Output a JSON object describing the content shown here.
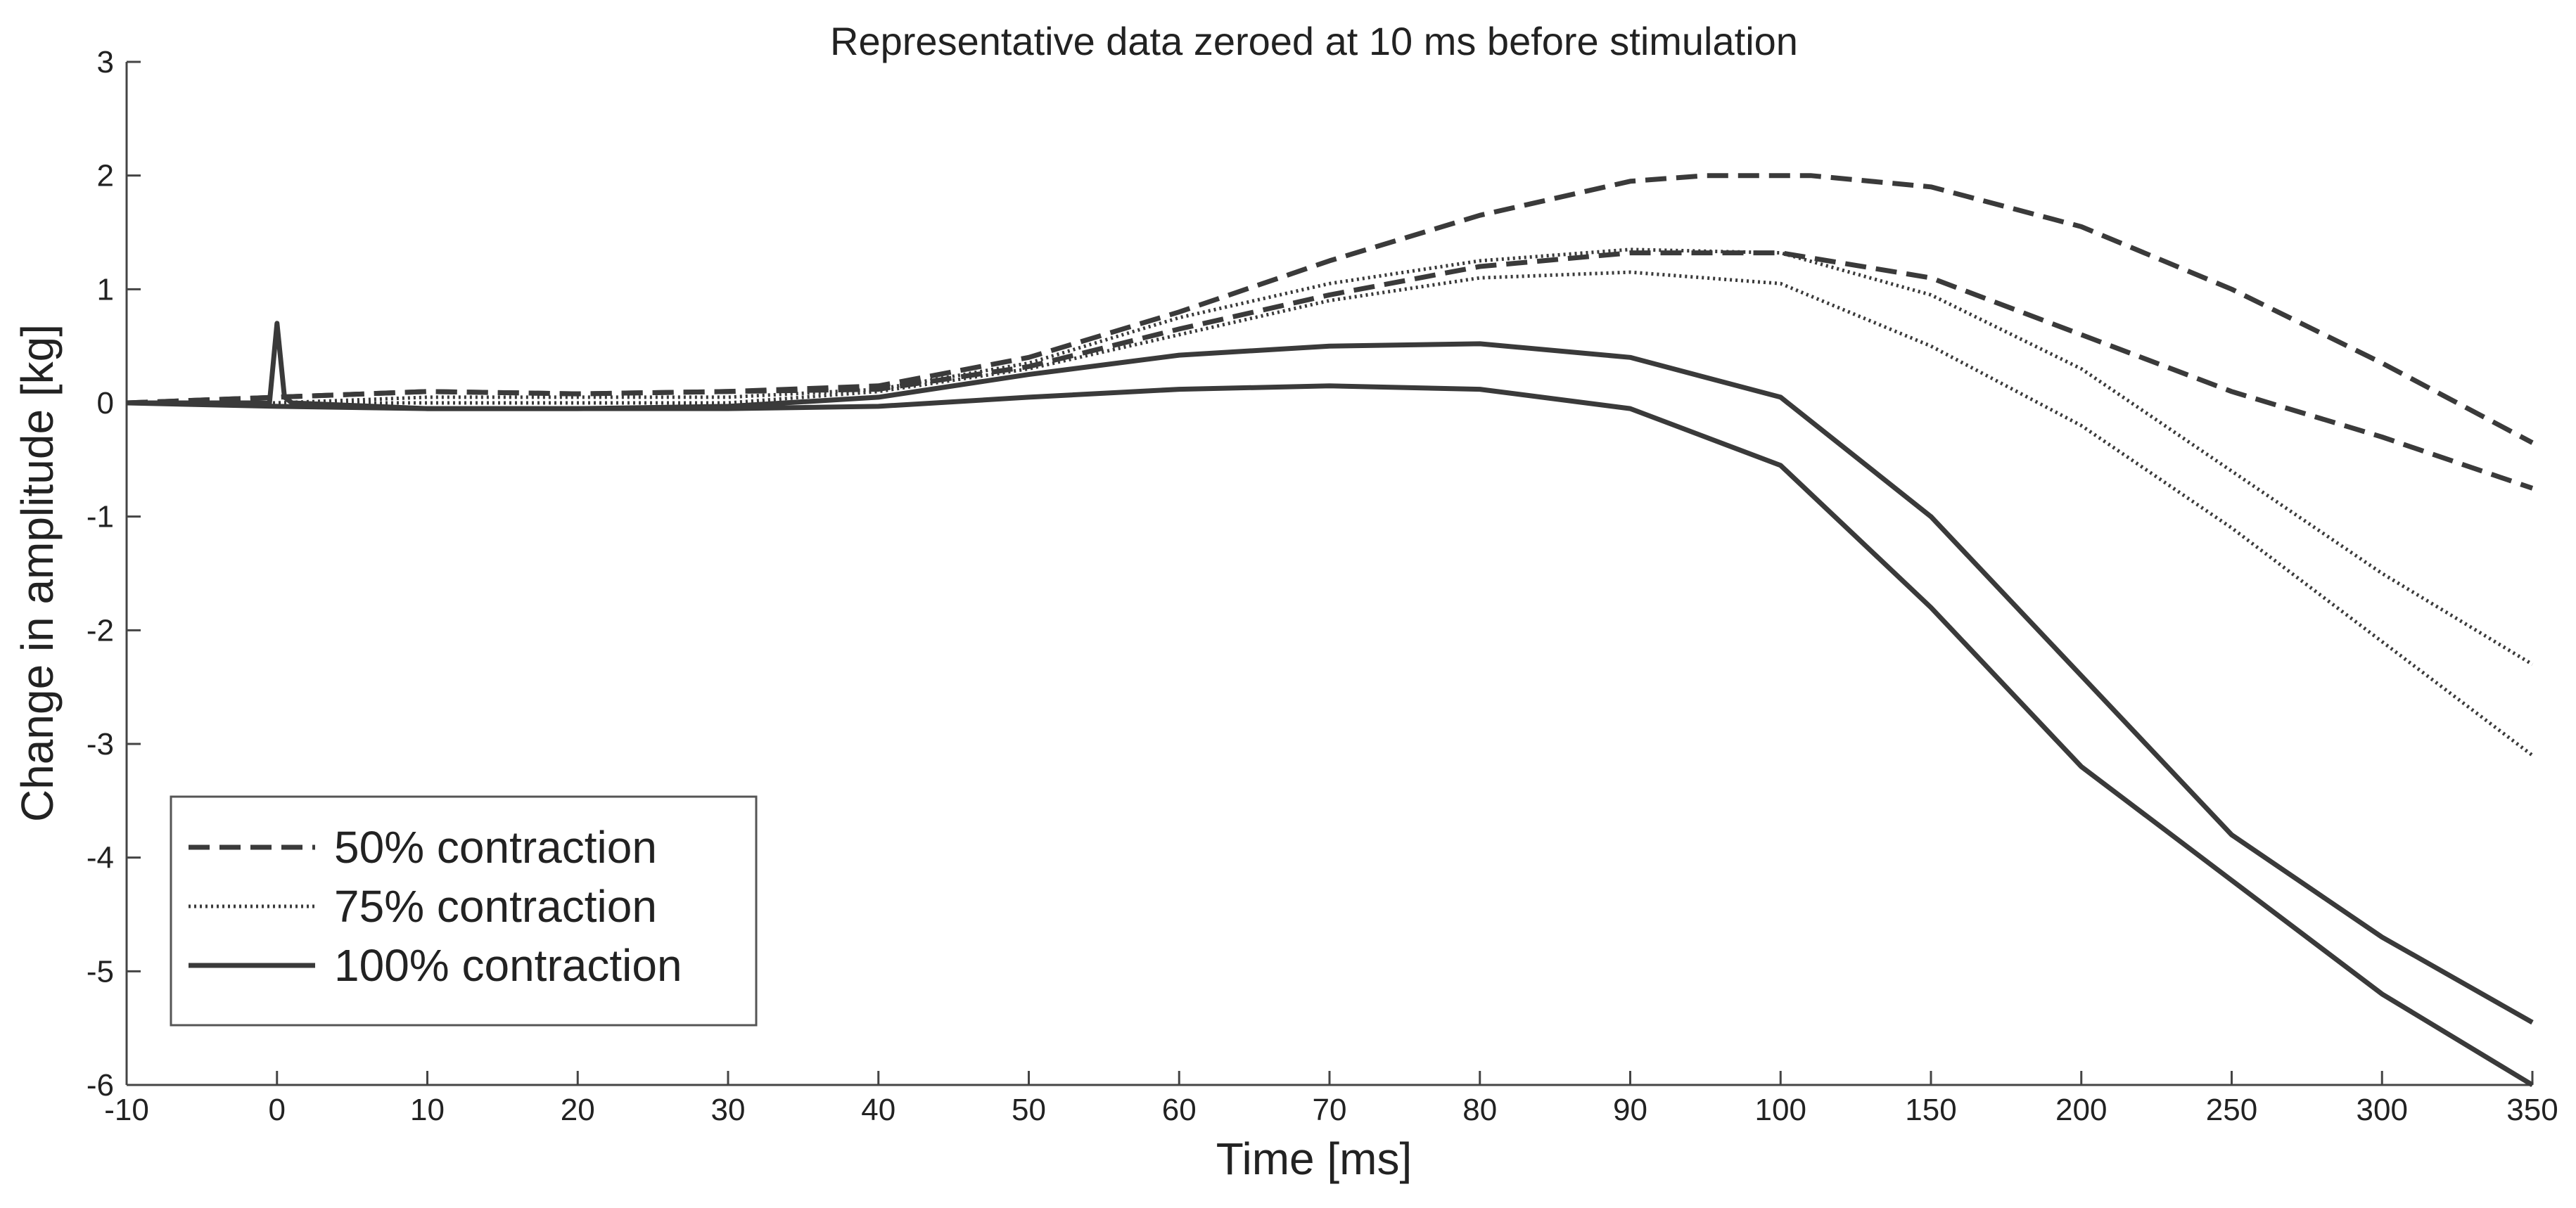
{
  "chart_data": {
    "type": "line",
    "title": "Representative data zeroed at 10 ms before stimulation",
    "xlabel": "Time [ms]",
    "ylabel": "Change in amplitude [kg]",
    "ylim": [
      -6,
      3
    ],
    "yticks": [
      "3",
      "2",
      "1",
      "0",
      "-1",
      "-2",
      "-3",
      "-4",
      "-5",
      "-6"
    ],
    "ytick_values": [
      3,
      2,
      1,
      0,
      -1,
      -2,
      -3,
      -4,
      -5,
      -6
    ],
    "xtick_labels": [
      "-10",
      "0",
      "10",
      "20",
      "30",
      "40",
      "50",
      "60",
      "70",
      "80",
      "90",
      "100",
      "150",
      "200",
      "250",
      "300",
      "350"
    ],
    "x_note": "x axis is non-uniform: 10 ms steps from -10 to 100, then 50 ms steps to 350",
    "grid": false,
    "legend_position": "bottom-left",
    "legend": [
      {
        "label": "50% contraction",
        "style": "dashed"
      },
      {
        "label": "75% contraction",
        "style": "dotted"
      },
      {
        "label": "100% contraction",
        "style": "solid"
      }
    ],
    "series": [
      {
        "name": "50% contraction (trial 1)",
        "style": "dashed",
        "x": [
          -10,
          0,
          10,
          20,
          30,
          40,
          50,
          60,
          70,
          80,
          90,
          95,
          100,
          110,
          150,
          200,
          250,
          300,
          350
        ],
        "y": [
          0,
          0.05,
          0.1,
          0.08,
          0.1,
          0.15,
          0.4,
          0.8,
          1.25,
          1.65,
          1.95,
          2.0,
          2.0,
          2.0,
          1.9,
          1.55,
          1.0,
          0.35,
          -0.35
        ]
      },
      {
        "name": "50% contraction (trial 2)",
        "style": "dashed",
        "x": [
          -10,
          0,
          10,
          20,
          30,
          40,
          50,
          60,
          70,
          80,
          90,
          100,
          150,
          200,
          250,
          300,
          350
        ],
        "y": [
          0,
          0.05,
          0.1,
          0.08,
          0.1,
          0.12,
          0.32,
          0.65,
          0.95,
          1.2,
          1.32,
          1.32,
          1.1,
          0.6,
          0.1,
          -0.3,
          -0.75
        ]
      },
      {
        "name": "75% contraction (trial 1)",
        "style": "dotted",
        "x": [
          -10,
          0,
          10,
          20,
          30,
          40,
          50,
          60,
          70,
          80,
          90,
          100,
          150,
          200,
          250,
          300,
          350
        ],
        "y": [
          0,
          0,
          0.05,
          0.05,
          0.05,
          0.12,
          0.35,
          0.75,
          1.05,
          1.25,
          1.35,
          1.32,
          0.95,
          0.3,
          -0.6,
          -1.5,
          -2.3
        ]
      },
      {
        "name": "75% contraction (trial 2)",
        "style": "dotted",
        "x": [
          -10,
          0,
          10,
          20,
          30,
          40,
          50,
          60,
          70,
          80,
          90,
          100,
          150,
          200,
          250,
          300,
          350
        ],
        "y": [
          0,
          0,
          0,
          0,
          0,
          0.1,
          0.3,
          0.6,
          0.9,
          1.1,
          1.15,
          1.05,
          0.5,
          -0.2,
          -1.1,
          -2.1,
          -3.1
        ]
      },
      {
        "name": "100% contraction (trial 1)",
        "style": "solid",
        "x": [
          -10,
          -0.5,
          0,
          0.5,
          1,
          10,
          20,
          30,
          40,
          50,
          60,
          70,
          80,
          90,
          100,
          150,
          200,
          250,
          300,
          350
        ],
        "y": [
          0,
          0,
          0.7,
          0.05,
          0,
          -0.05,
          -0.05,
          -0.03,
          0.05,
          0.25,
          0.42,
          0.5,
          0.52,
          0.4,
          0.05,
          -1.0,
          -2.4,
          -3.8,
          -4.7,
          -5.45
        ]
      },
      {
        "name": "100% contraction (trial 2)",
        "style": "solid",
        "x": [
          -10,
          0,
          10,
          20,
          30,
          40,
          50,
          60,
          70,
          80,
          90,
          100,
          150,
          200,
          250,
          300,
          350
        ],
        "y": [
          0,
          -0.03,
          -0.05,
          -0.05,
          -0.05,
          -0.03,
          0.05,
          0.12,
          0.15,
          0.12,
          -0.05,
          -0.55,
          -1.8,
          -3.2,
          -4.2,
          -5.2,
          -6.0
        ]
      }
    ]
  }
}
